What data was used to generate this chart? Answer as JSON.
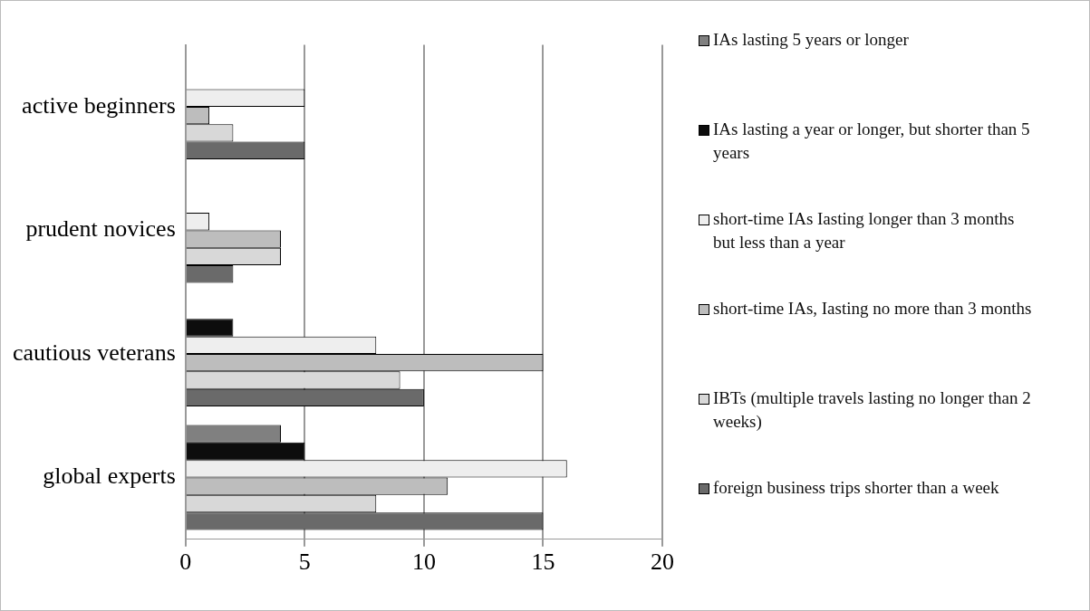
{
  "chart_data": {
    "type": "bar",
    "orientation": "horizontal",
    "categories": [
      "active beginners",
      "prudent novices",
      "cautious veterans",
      "global experts"
    ],
    "series": [
      {
        "name": "IAs lasting 5 years or longer",
        "color": "#808080",
        "values": [
          0,
          0,
          0,
          4
        ]
      },
      {
        "name": "IAs lasting a year or longer, but shorter than 5 years",
        "color": "#0d0d0d",
        "values": [
          0,
          0,
          2,
          5
        ]
      },
      {
        "name": "short-time IAs Iasting longer than 3 months but less than a year",
        "color": "#eeeeee",
        "values": [
          5,
          1,
          8,
          16
        ]
      },
      {
        "name": "short-time IAs, Iasting no more than 3 months",
        "color": "#bdbdbd",
        "values": [
          1,
          4,
          15,
          11
        ]
      },
      {
        "name": "IBTs (multiple travels lasting no longer than 2 weeks)",
        "color": "#d8d8d8",
        "values": [
          2,
          4,
          9,
          8
        ]
      },
      {
        "name": "foreign business trips shorter than a week",
        "color": "#6a6a6a",
        "values": [
          5,
          2,
          10,
          15
        ]
      }
    ],
    "xlim": [
      0,
      20
    ],
    "xticks": [
      0,
      5,
      10,
      15,
      20
    ],
    "grid": "x",
    "legend": "right"
  }
}
